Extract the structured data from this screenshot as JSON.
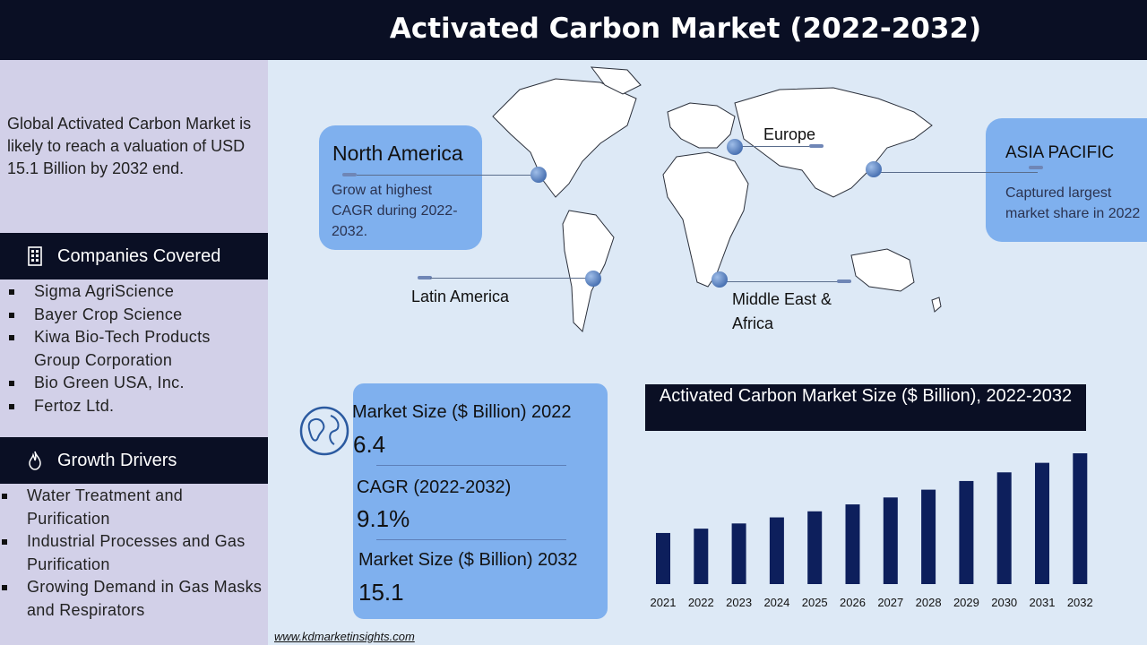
{
  "title": "Activated Carbon Market (2022-2032)",
  "intro": "Global Activated Carbon Market is likely to reach a valuation of USD 15.1 Billion by 2032 end.",
  "companies": {
    "heading": "Companies Covered",
    "icon": "building-icon",
    "items": [
      "Sigma AgriScience",
      "Bayer Crop Science",
      "Kiwa Bio-Tech Products Group Corporation",
      "Bio Green USA, Inc.",
      "Fertoz Ltd."
    ]
  },
  "drivers": {
    "heading": "Growth Drivers",
    "icon": "flame-icon",
    "items": [
      "Water Treatment and Purification",
      "Industrial Processes and Gas Purification",
      "Growing Demand in Gas Masks and Respirators"
    ]
  },
  "regions": {
    "north_america": {
      "name": "North America",
      "desc": "Grow at highest CAGR during 2022-2032."
    },
    "europe": {
      "name": "Europe"
    },
    "asia_pacific": {
      "name": "ASIA PACIFIC",
      "desc": "Captured largest market share in 2022"
    },
    "latin_america": {
      "name": "Latin America"
    },
    "mea": {
      "name": "Middle East & Africa"
    }
  },
  "stats": {
    "size_2022_label": "Market Size ($ Billion) 2022",
    "size_2022_value": "6.4",
    "cagr_label": "CAGR (2022-2032)",
    "cagr_value": "9.1%",
    "size_2032_label": "Market Size ($ Billion) 2032",
    "size_2032_value": "15.1"
  },
  "chart_data": {
    "type": "bar",
    "title": "Activated Carbon Market Size ($ Billion), 2022-2032",
    "categories": [
      "2021",
      "2022",
      "2023",
      "2024",
      "2025",
      "2026",
      "2027",
      "2028",
      "2029",
      "2030",
      "2031",
      "2032"
    ],
    "values": [
      5.9,
      6.4,
      7.0,
      7.7,
      8.4,
      9.2,
      10.0,
      10.9,
      11.9,
      12.9,
      14.0,
      15.1
    ],
    "bar_color": "#0d1f5c"
  },
  "website": "www.kdmarketinsights.com",
  "colors": {
    "dark": "#0a0f24",
    "sidebar": "#d2d0e8",
    "panel": "#7fb0ee",
    "background": "#dde9f6"
  }
}
